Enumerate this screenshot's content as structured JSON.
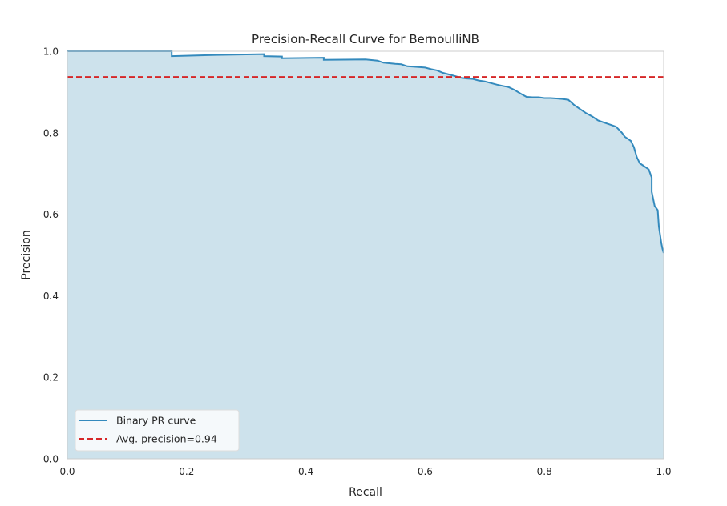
{
  "chart_data": {
    "type": "line",
    "title": "Precision-Recall Curve for BernoulliNB",
    "xlabel": "Recall",
    "ylabel": "Precision",
    "xlim": [
      0.0,
      1.0
    ],
    "ylim": [
      0.0,
      1.0
    ],
    "xticks": [
      "0.0",
      "0.2",
      "0.4",
      "0.6",
      "0.8",
      "1.0"
    ],
    "yticks": [
      "0.0",
      "0.2",
      "0.4",
      "0.6",
      "0.8",
      "1.0"
    ],
    "grid": false,
    "legend_position": "lower-left",
    "series": [
      {
        "name": "Binary PR curve",
        "color": "#348ABD",
        "fill_color": "#cde2ec",
        "x": [
          0.0,
          0.175,
          0.175,
          0.25,
          0.33,
          0.33,
          0.36,
          0.36,
          0.43,
          0.43,
          0.5,
          0.52,
          0.53,
          0.55,
          0.56,
          0.57,
          0.58,
          0.6,
          0.61,
          0.62,
          0.63,
          0.64,
          0.65,
          0.66,
          0.67,
          0.68,
          0.69,
          0.7,
          0.71,
          0.72,
          0.73,
          0.74,
          0.75,
          0.76,
          0.77,
          0.78,
          0.79,
          0.8,
          0.81,
          0.82,
          0.83,
          0.84,
          0.85,
          0.86,
          0.87,
          0.88,
          0.89,
          0.9,
          0.91,
          0.92,
          0.93,
          0.935,
          0.94,
          0.945,
          0.95,
          0.955,
          0.96,
          0.965,
          0.97,
          0.975,
          0.98,
          0.98,
          0.985,
          0.99,
          0.992,
          0.994,
          0.996,
          0.998,
          1.0
        ],
        "y": [
          1.0,
          1.0,
          0.988,
          0.991,
          0.993,
          0.988,
          0.987,
          0.983,
          0.984,
          0.979,
          0.98,
          0.977,
          0.972,
          0.969,
          0.968,
          0.963,
          0.962,
          0.96,
          0.956,
          0.953,
          0.947,
          0.943,
          0.939,
          0.935,
          0.933,
          0.932,
          0.928,
          0.926,
          0.922,
          0.918,
          0.915,
          0.912,
          0.905,
          0.896,
          0.888,
          0.887,
          0.887,
          0.885,
          0.885,
          0.884,
          0.883,
          0.881,
          0.868,
          0.858,
          0.848,
          0.84,
          0.83,
          0.825,
          0.82,
          0.815,
          0.8,
          0.79,
          0.785,
          0.78,
          0.765,
          0.74,
          0.725,
          0.72,
          0.715,
          0.71,
          0.69,
          0.655,
          0.62,
          0.61,
          0.57,
          0.55,
          0.53,
          0.515,
          0.505
        ]
      },
      {
        "name": "Avg. precision=0.94",
        "color": "#d62728",
        "style": "dashed",
        "x": [
          0.0,
          1.0
        ],
        "y": [
          0.937,
          0.937
        ]
      }
    ]
  }
}
